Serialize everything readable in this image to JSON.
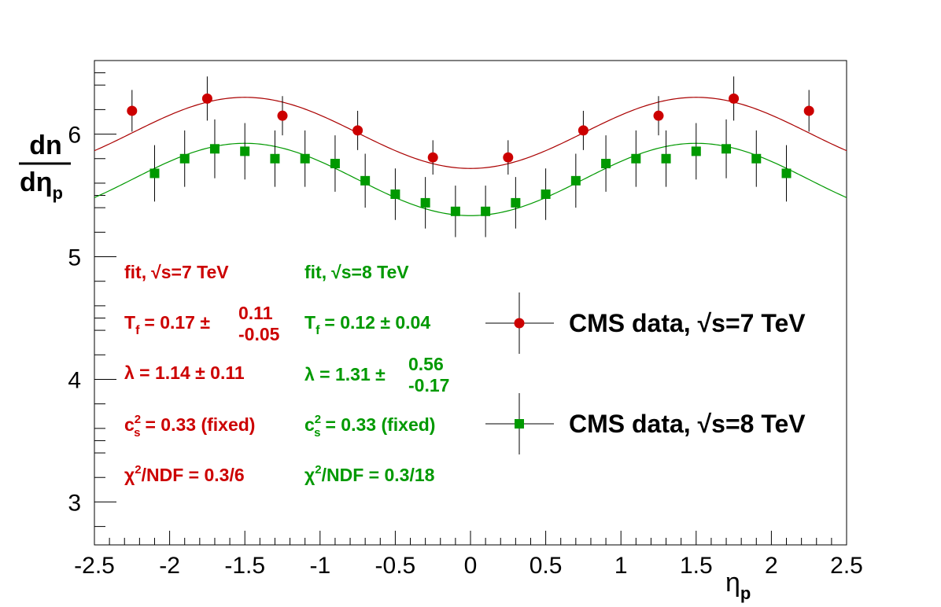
{
  "chart_data": {
    "type": "scatter",
    "title": "",
    "xlabel": {
      "main": "η",
      "sub": "p"
    },
    "ylabel": {
      "numerator": "dn",
      "denominator_main": "dη",
      "denominator_sub": "p"
    },
    "xlim": [
      -2.5,
      2.5
    ],
    "ylim": [
      2.65,
      6.6
    ],
    "x_ticks": [
      -2.5,
      -2,
      -1.5,
      -1,
      -0.5,
      0,
      0.5,
      1,
      1.5,
      2,
      2.5
    ],
    "x_tick_labels": [
      "-2.5",
      "-2",
      "-1.5",
      "-1",
      "-0.5",
      "0",
      "0.5",
      "1",
      "1.5",
      "2",
      "2.5"
    ],
    "y_ticks": [
      3,
      4,
      5,
      6
    ],
    "y_tick_labels": [
      "3",
      "4",
      "5",
      "6"
    ],
    "series": [
      {
        "name": "CMS data, √s=7 TeV",
        "marker": "circle",
        "color": "#cc0000",
        "x": [
          -2.25,
          -1.75,
          -1.25,
          -0.75,
          -0.25,
          0.25,
          0.75,
          1.25,
          1.75,
          2.25
        ],
        "y": [
          6.19,
          6.29,
          6.15,
          6.03,
          5.81,
          5.81,
          6.03,
          6.15,
          6.29,
          6.19
        ],
        "yerr": [
          0.17,
          0.18,
          0.16,
          0.16,
          0.14,
          0.14,
          0.16,
          0.16,
          0.18,
          0.17
        ],
        "fit": {
          "center": 6.01,
          "amp": 0.29,
          "period": 3.0,
          "color": "#aa0000"
        }
      },
      {
        "name": "CMS data, √s=8 TeV",
        "marker": "square",
        "color": "#009900",
        "x": [
          -2.1,
          -1.9,
          -1.7,
          -1.5,
          -1.3,
          -1.1,
          -0.9,
          -0.7,
          -0.5,
          -0.3,
          -0.1,
          0.1,
          0.3,
          0.5,
          0.7,
          0.9,
          1.1,
          1.3,
          1.5,
          1.7,
          1.9,
          2.1
        ],
        "y": [
          5.68,
          5.8,
          5.88,
          5.86,
          5.8,
          5.8,
          5.76,
          5.62,
          5.51,
          5.44,
          5.37,
          5.37,
          5.44,
          5.51,
          5.62,
          5.76,
          5.8,
          5.8,
          5.86,
          5.88,
          5.8,
          5.68
        ],
        "yerr": [
          0.23,
          0.23,
          0.24,
          0.23,
          0.23,
          0.23,
          0.23,
          0.22,
          0.21,
          0.21,
          0.21,
          0.21,
          0.21,
          0.21,
          0.22,
          0.23,
          0.23,
          0.23,
          0.23,
          0.24,
          0.23,
          0.23
        ],
        "fit": {
          "center": 5.63,
          "amp": 0.295,
          "period": 3.0,
          "color": "#009900"
        }
      }
    ],
    "annotations": {
      "red": {
        "fit_label": "fit,",
        "energy": "√s=7 TeV",
        "tf_label": "T",
        "tf_sub": "f",
        "tf_value": "= 0.17 ±",
        "tf_up": "0.11",
        "tf_down": "-0.05",
        "lambda": "λ = 1.14 ± 0.11",
        "cs_label": "c",
        "cs_sup": "2",
        "cs_sub": "s",
        "cs_value": "= 0.33 (fixed)",
        "chi_label": "χ",
        "chi_sup": "2",
        "chi_value": "/NDF = 0.3/6"
      },
      "green": {
        "fit_label": "fit,",
        "energy": "√s=8 TeV",
        "tf_label": "T",
        "tf_sub": "f",
        "tf_value": "= 0.12 ± 0.04",
        "lambda_value": "λ = 1.31 ±",
        "lambda_up": "0.56",
        "lambda_down": "-0.17",
        "cs_label": "c",
        "cs_sup": "2",
        "cs_sub": "s",
        "cs_value": "= 0.33 (fixed)",
        "chi_label": "χ",
        "chi_sup": "2",
        "chi_value": "/NDF = 0.3/18"
      }
    },
    "legend": [
      {
        "label": "CMS data, √s=7 TeV",
        "marker": "circle",
        "color": "#cc0000"
      },
      {
        "label": "CMS data, √s=8 TeV",
        "marker": "square",
        "color": "#009900"
      }
    ],
    "legend_position": "center-right"
  }
}
